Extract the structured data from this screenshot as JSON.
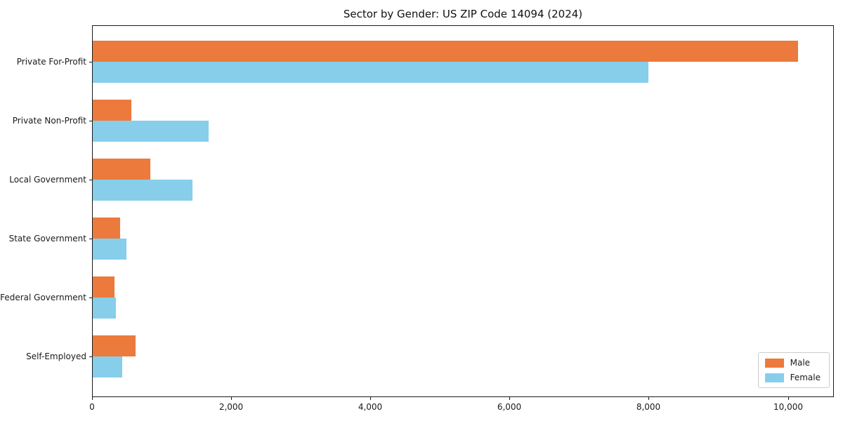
{
  "title": "Sector by Gender: US ZIP Code 14094 (2024)",
  "colors": {
    "male": "#ec7a3c",
    "female": "#87ceeb",
    "axis": "#1a1a1a",
    "legend_border": "#cccccc",
    "background": "#ffffff"
  },
  "chart_data": {
    "type": "bar",
    "orientation": "horizontal",
    "title": "Sector by Gender: US ZIP Code 14094 (2024)",
    "categories": [
      "Private For-Profit",
      "Private Non-Profit",
      "Local Government",
      "State Government",
      "Federal Government",
      "Self-Employed"
    ],
    "series": [
      {
        "name": "Male",
        "color": "#ec7a3c",
        "values": [
          10140,
          560,
          830,
          390,
          310,
          620
        ]
      },
      {
        "name": "Female",
        "color": "#87ceeb",
        "values": [
          7980,
          1670,
          1430,
          480,
          330,
          420
        ]
      }
    ],
    "xlim": [
      0,
      10650
    ],
    "xticks": [
      0,
      2000,
      4000,
      6000,
      8000,
      10000
    ],
    "xtick_labels": [
      "0",
      "2,000",
      "4,000",
      "6,000",
      "8,000",
      "10,000"
    ],
    "xlabel": "",
    "ylabel": "",
    "grid": false,
    "legend_position": "lower right"
  }
}
